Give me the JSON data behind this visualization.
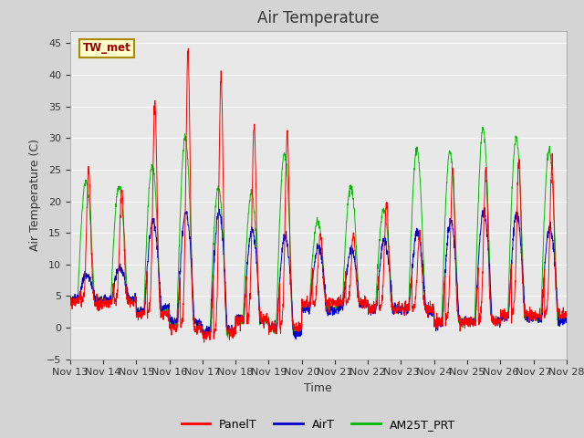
{
  "title": "Air Temperature",
  "ylabel": "Air Temperature (C)",
  "xlabel": "Time",
  "ylim": [
    -5,
    47
  ],
  "yticks": [
    -5,
    0,
    5,
    10,
    15,
    20,
    25,
    30,
    35,
    40,
    45
  ],
  "fig_facecolor": "#d4d4d4",
  "plot_bg_color": "#e8e8e8",
  "grid_color": "#ffffff",
  "legend_entries": [
    "PanelT",
    "AirT",
    "AM25T_PRT"
  ],
  "legend_colors": [
    "#ff0000",
    "#0000cc",
    "#00bb00"
  ],
  "station_label": "TW_met",
  "station_label_color": "#990000",
  "station_box_facecolor": "#ffffcc",
  "station_box_edgecolor": "#aa8800",
  "x_tick_labels": [
    "Nov 13",
    "Nov 14",
    "Nov 15",
    "Nov 16",
    "Nov 17",
    "Nov 18",
    "Nov 19",
    "Nov 20",
    "Nov 21",
    "Nov 22",
    "Nov 23",
    "Nov 24",
    "Nov 25",
    "Nov 26",
    "Nov 27",
    "Nov 28"
  ],
  "title_fontsize": 12,
  "label_fontsize": 9,
  "tick_fontsize": 8,
  "n_days": 15,
  "pts_per_day": 144,
  "panel_peaks": [
    25,
    22,
    36,
    44,
    40,
    32,
    31,
    15,
    15,
    20,
    15,
    25,
    25,
    27,
    26
  ],
  "air_peaks": [
    8,
    9,
    16,
    17,
    18,
    15,
    15,
    14,
    13,
    14,
    15,
    17,
    18,
    18,
    17
  ],
  "am25_peaks": [
    23,
    22,
    25,
    29,
    22,
    21,
    28,
    18,
    23,
    19,
    28,
    28,
    31,
    30,
    29
  ],
  "night_base": [
    4,
    4,
    2,
    0,
    -1,
    1,
    0,
    4,
    4,
    3,
    3,
    1,
    1,
    2,
    2
  ]
}
